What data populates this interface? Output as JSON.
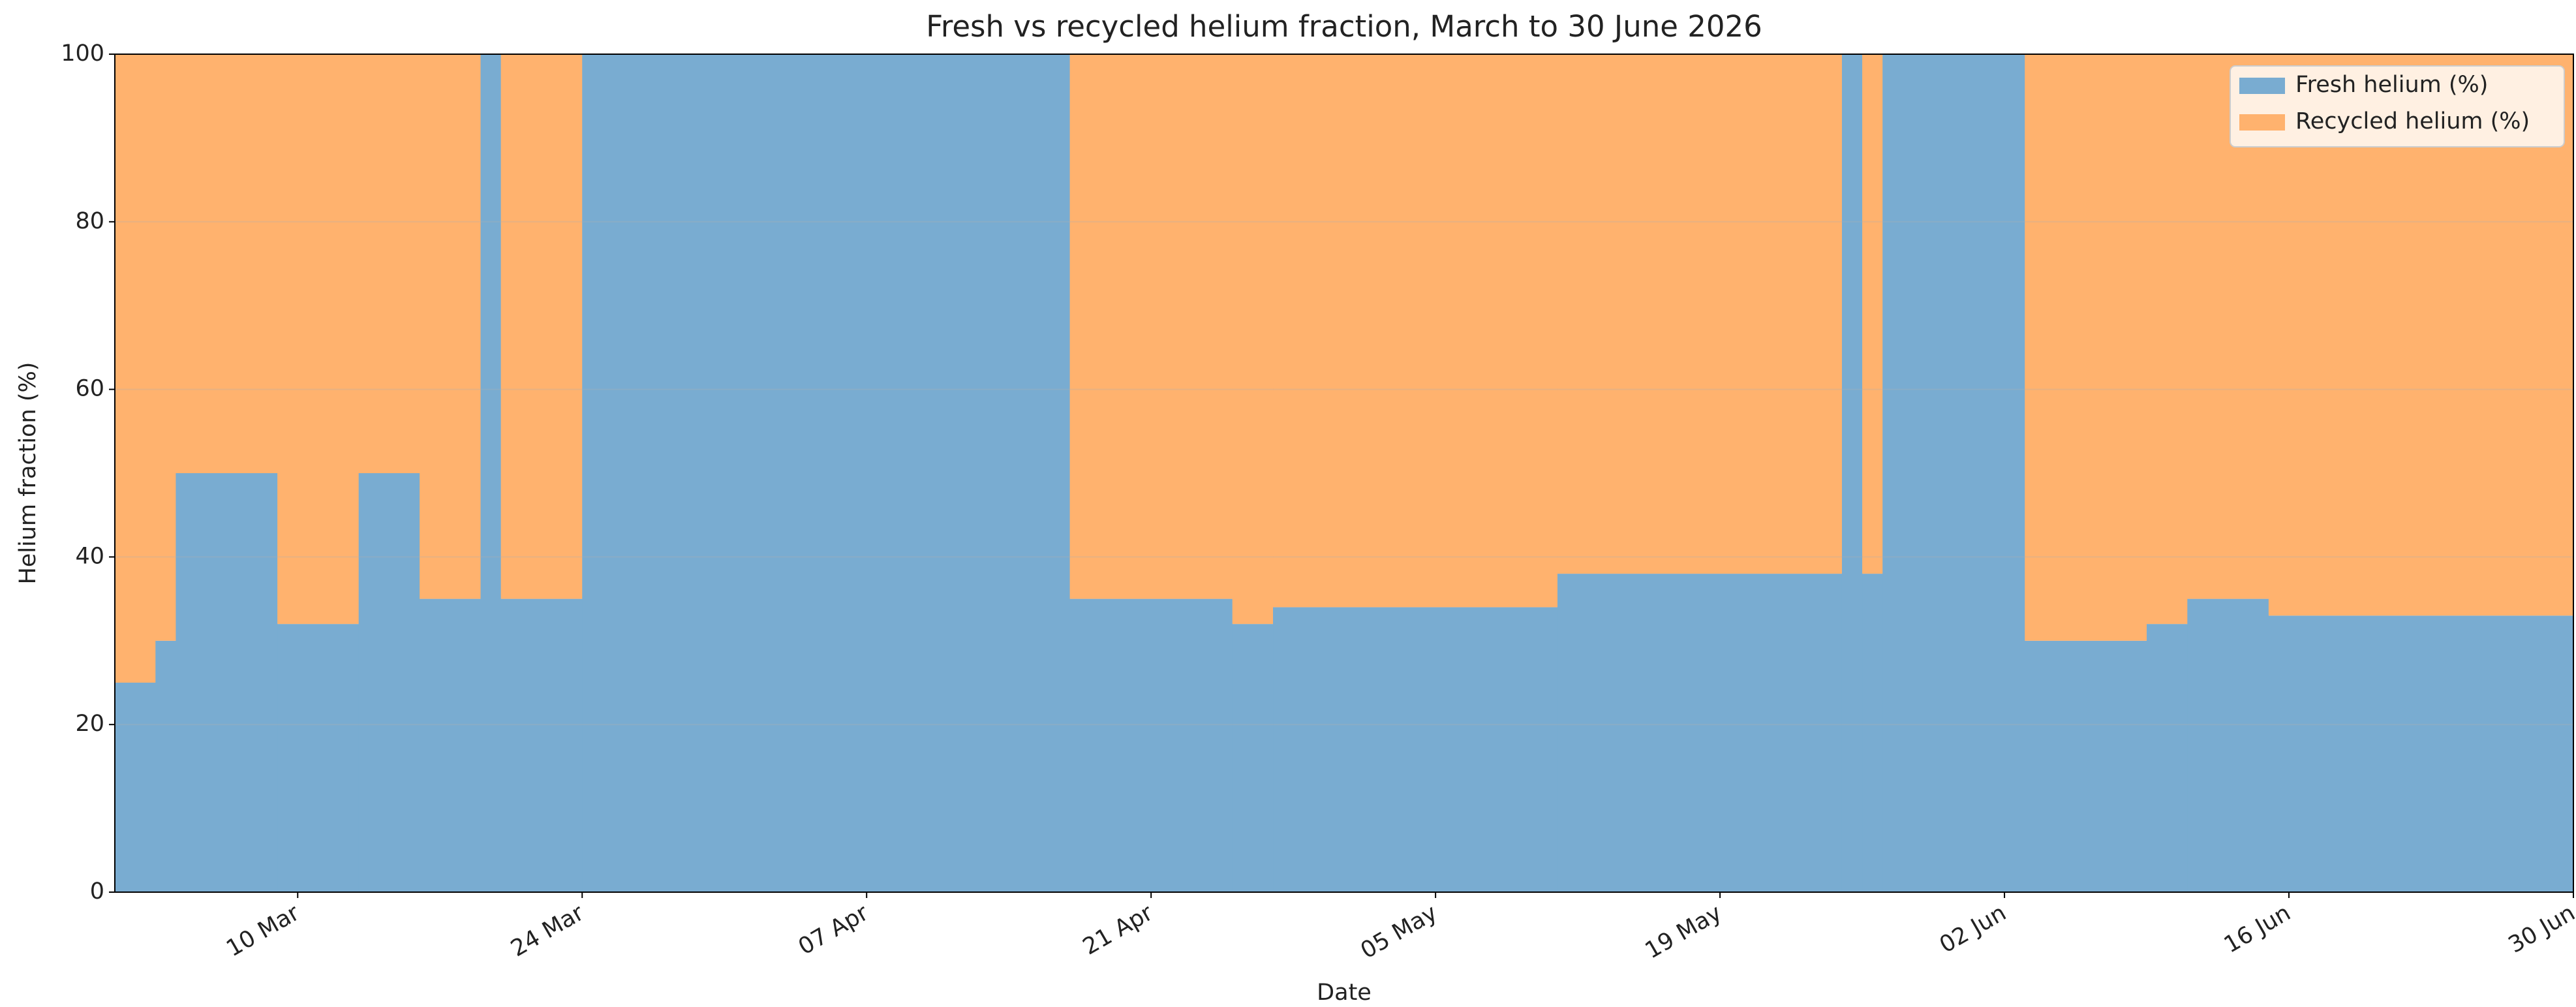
{
  "chart_data": {
    "type": "stacked_step_area",
    "title": "Fresh vs recycled helium fraction, March to 30 June 2026",
    "xlabel": "Date",
    "ylabel": "Helium fraction (%)",
    "x": [
      "2026-03-01",
      "2026-03-03",
      "2026-03-04",
      "2026-03-09",
      "2026-03-13",
      "2026-03-16",
      "2026-03-19",
      "2026-03-20",
      "2026-03-24",
      "2026-04-17",
      "2026-04-25",
      "2026-04-27",
      "2026-05-11",
      "2026-05-25",
      "2026-05-26",
      "2026-05-27",
      "2026-06-03",
      "2026-06-09",
      "2026-06-11",
      "2026-06-15"
    ],
    "series": [
      {
        "name": "Fresh helium (%)",
        "color": "#79acd1",
        "values": [
          25,
          30,
          50,
          32,
          50,
          35,
          100,
          35,
          100,
          35,
          32,
          34,
          38,
          100,
          38,
          100,
          30,
          32,
          35,
          33
        ]
      },
      {
        "name": "Recycled helium (%)",
        "color": "#ffb26e",
        "values": [
          75,
          70,
          50,
          68,
          50,
          65,
          0,
          65,
          0,
          65,
          68,
          66,
          62,
          0,
          62,
          0,
          70,
          68,
          65,
          67
        ]
      }
    ],
    "xlim": [
      "2026-03-01",
      "2026-06-30"
    ],
    "xticks": [
      {
        "value": "2026-03-10",
        "label": "10 Mar"
      },
      {
        "value": "2026-03-24",
        "label": "24 Mar"
      },
      {
        "value": "2026-04-07",
        "label": "07 Apr"
      },
      {
        "value": "2026-04-21",
        "label": "21 Apr"
      },
      {
        "value": "2026-05-05",
        "label": "05 May"
      },
      {
        "value": "2026-05-19",
        "label": "19 May"
      },
      {
        "value": "2026-06-02",
        "label": "02 Jun"
      },
      {
        "value": "2026-06-16",
        "label": "16 Jun"
      },
      {
        "value": "2026-06-30",
        "label": "30 Jun"
      }
    ],
    "ylim": [
      0,
      100
    ],
    "yticks": [
      0,
      20,
      40,
      60,
      80,
      100
    ],
    "grid": true,
    "legend": "upper right"
  }
}
